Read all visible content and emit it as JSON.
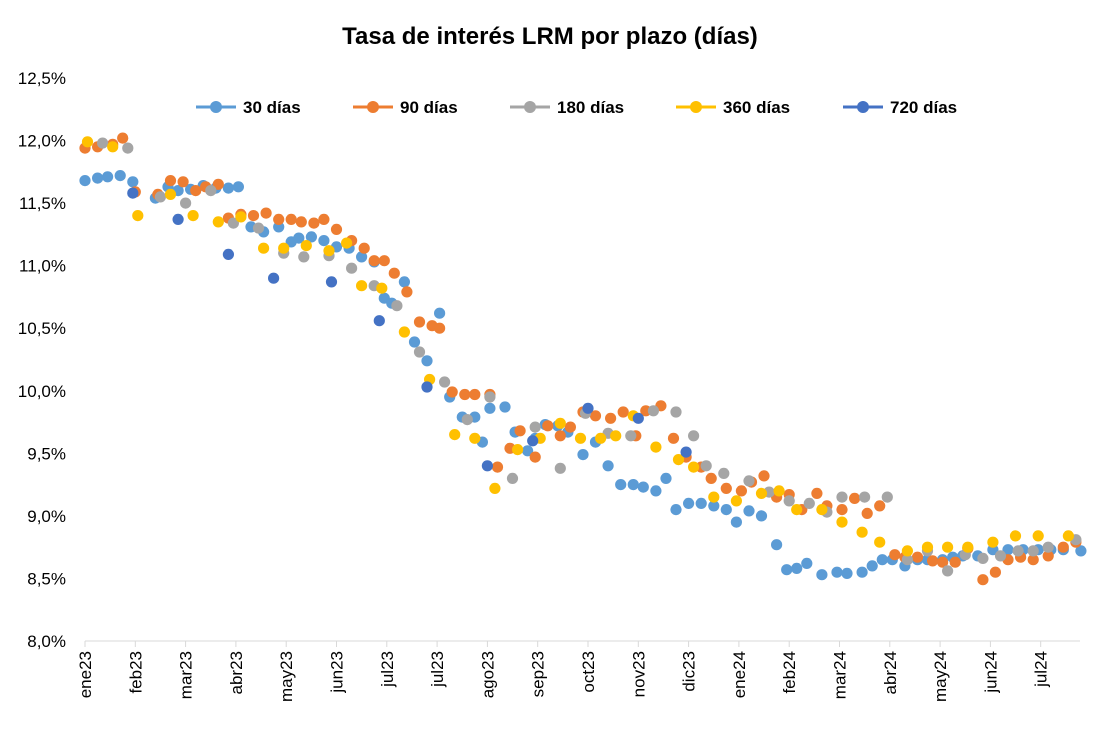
{
  "chart_data": {
    "type": "scatter",
    "title": "Tasa de interés LRM por plazo (días)",
    "xlabel": "",
    "ylabel": "",
    "ylim": [
      8.0,
      12.5
    ],
    "y_ticks": [
      "8,0%",
      "8,5%",
      "9,0%",
      "9,5%",
      "10,0%",
      "10,5%",
      "11,0%",
      "11,5%",
      "12,0%",
      "12,5%"
    ],
    "x_categories": [
      "ene23",
      "feb23",
      "mar23",
      "abr23",
      "may23",
      "jun23",
      "jul23",
      "jul23",
      "ago23",
      "sep23",
      "oct23",
      "nov23",
      "dic23",
      "ene24",
      "feb24",
      "mar24",
      "abr24",
      "may24",
      "jun24",
      "jul24"
    ],
    "xlim": [
      0,
      19.8
    ],
    "grid": false,
    "legend_position": "top",
    "series": [
      {
        "name": "30 días",
        "color": "#5B9BD5",
        "x": [
          0,
          0.25,
          0.45,
          0.7,
          0.95,
          1.4,
          1.65,
          1.85,
          2.1,
          2.35,
          2.6,
          2.85,
          3.05,
          3.3,
          3.55,
          3.85,
          4.1,
          4.25,
          4.5,
          4.75,
          5.0,
          5.25,
          5.5,
          5.75,
          5.95,
          6.1,
          6.35,
          6.55,
          6.8,
          7.05,
          7.25,
          7.5,
          7.75,
          7.9,
          8.05,
          8.35,
          8.55,
          8.8,
          8.95,
          9.15,
          9.4,
          9.6,
          9.9,
          10.15,
          10.4,
          10.65,
          10.9,
          11.1,
          11.35,
          11.55,
          11.75,
          12.0,
          12.25,
          12.5,
          12.75,
          12.95,
          13.2,
          13.45,
          13.75,
          13.95,
          14.15,
          14.35,
          14.65,
          14.95,
          15.15,
          15.45,
          15.65,
          15.85,
          16.05,
          16.3,
          16.55,
          16.75,
          17.05,
          17.25,
          17.45,
          17.75,
          18.05,
          18.35,
          18.65,
          18.95,
          19.2,
          19.45,
          19.8
        ],
        "y": [
          11.68,
          11.7,
          11.71,
          11.72,
          11.67,
          11.54,
          11.63,
          11.6,
          11.61,
          11.64,
          11.62,
          11.62,
          11.63,
          11.31,
          11.27,
          11.31,
          11.19,
          11.22,
          11.23,
          11.2,
          11.15,
          11.14,
          11.07,
          11.03,
          10.74,
          10.7,
          10.87,
          10.39,
          10.24,
          10.62,
          9.95,
          9.79,
          9.79,
          9.59,
          9.86,
          9.87,
          9.67,
          9.52,
          9.62,
          9.73,
          9.72,
          9.67,
          9.49,
          9.59,
          9.4,
          9.25,
          9.25,
          9.23,
          9.2,
          9.3,
          9.05,
          9.1,
          9.1,
          9.08,
          9.05,
          8.95,
          9.04,
          9.0,
          8.77,
          8.57,
          8.58,
          8.62,
          8.53,
          8.55,
          8.54,
          8.55,
          8.6,
          8.65,
          8.65,
          8.6,
          8.65,
          8.65,
          8.65,
          8.67,
          8.68,
          8.68,
          8.73,
          8.73,
          8.73,
          8.73,
          8.73,
          8.73,
          8.72
        ]
      },
      {
        "name": "90 días",
        "color": "#ED7D31",
        "x": [
          0,
          0.25,
          0.55,
          0.75,
          1.0,
          1.45,
          1.7,
          1.95,
          2.2,
          2.4,
          2.65,
          2.85,
          3.1,
          3.35,
          3.6,
          3.85,
          4.1,
          4.3,
          4.55,
          4.75,
          5.0,
          5.3,
          5.55,
          5.75,
          5.95,
          6.15,
          6.4,
          6.65,
          6.9,
          7.05,
          7.3,
          7.55,
          7.75,
          8.05,
          8.2,
          8.45,
          8.65,
          8.95,
          9.2,
          9.45,
          9.65,
          9.9,
          10.15,
          10.45,
          10.7,
          10.95,
          11.15,
          11.45,
          11.7,
          11.95,
          12.25,
          12.45,
          12.75,
          13.05,
          13.25,
          13.5,
          13.75,
          14.0,
          14.25,
          14.55,
          14.75,
          15.05,
          15.3,
          15.55,
          15.8,
          16.1,
          16.3,
          16.55,
          16.85,
          17.05,
          17.3,
          17.55,
          17.85,
          18.1,
          18.35,
          18.6,
          18.85,
          19.15,
          19.45,
          19.7
        ],
        "y": [
          11.94,
          11.95,
          11.97,
          12.02,
          11.59,
          11.57,
          11.68,
          11.67,
          11.6,
          11.63,
          11.65,
          11.38,
          11.41,
          11.4,
          11.42,
          11.37,
          11.37,
          11.35,
          11.34,
          11.37,
          11.29,
          11.2,
          11.14,
          11.04,
          11.04,
          10.94,
          10.79,
          10.55,
          10.52,
          10.5,
          9.99,
          9.97,
          9.97,
          9.97,
          9.39,
          9.54,
          9.68,
          9.47,
          9.72,
          9.64,
          9.71,
          9.83,
          9.8,
          9.78,
          9.83,
          9.64,
          9.84,
          9.88,
          9.62,
          9.47,
          9.39,
          9.3,
          9.22,
          9.2,
          9.27,
          9.32,
          9.15,
          9.17,
          9.05,
          9.18,
          9.08,
          9.05,
          9.14,
          9.02,
          9.08,
          8.69,
          8.67,
          8.67,
          8.64,
          8.63,
          8.63,
          8.74,
          8.49,
          8.55,
          8.65,
          8.67,
          8.65,
          8.68,
          8.75,
          8.79
        ]
      },
      {
        "name": "180 días",
        "color": "#A5A5A5",
        "x": [
          0.35,
          0.85,
          1.5,
          2.0,
          2.5,
          2.95,
          3.45,
          3.95,
          4.35,
          4.85,
          5.3,
          5.75,
          6.2,
          6.65,
          7.15,
          7.6,
          8.05,
          8.5,
          8.95,
          9.45,
          9.95,
          10.4,
          10.85,
          11.3,
          11.75,
          12.1,
          12.35,
          12.7,
          13.2,
          13.6,
          14.0,
          14.4,
          14.75,
          15.05,
          15.5,
          15.95,
          16.35,
          16.75,
          17.15,
          17.5,
          17.85,
          18.2,
          18.55,
          18.85,
          19.15,
          19.7
        ],
        "y": [
          11.98,
          11.94,
          11.55,
          11.5,
          11.6,
          11.34,
          11.3,
          11.1,
          11.07,
          11.08,
          10.98,
          10.84,
          10.68,
          10.31,
          10.07,
          9.77,
          9.95,
          9.3,
          9.71,
          9.38,
          9.82,
          9.66,
          9.64,
          9.84,
          9.83,
          9.64,
          9.4,
          9.34,
          9.28,
          9.19,
          9.12,
          9.1,
          9.03,
          9.15,
          9.15,
          9.15,
          8.65,
          8.72,
          8.56,
          8.69,
          8.66,
          8.68,
          8.72,
          8.72,
          8.75,
          8.81
        ]
      },
      {
        "name": "360 días",
        "color": "#FFC000",
        "x": [
          0.05,
          0.55,
          1.05,
          1.7,
          2.15,
          2.65,
          3.1,
          3.55,
          3.95,
          4.4,
          4.85,
          5.2,
          5.5,
          5.9,
          6.35,
          6.85,
          7.35,
          7.75,
          8.15,
          8.6,
          9.05,
          9.45,
          9.85,
          10.25,
          10.55,
          10.9,
          11.35,
          11.8,
          12.1,
          12.5,
          12.95,
          13.45,
          13.8,
          14.15,
          14.65,
          15.05,
          15.45,
          15.8,
          16.35,
          16.75,
          17.15,
          17.55,
          18.05,
          18.5,
          18.95,
          19.55
        ],
        "y": [
          11.99,
          11.95,
          11.4,
          11.57,
          11.4,
          11.35,
          11.39,
          11.14,
          11.14,
          11.16,
          11.12,
          11.18,
          10.84,
          10.82,
          10.47,
          10.09,
          9.65,
          9.62,
          9.22,
          9.53,
          9.62,
          9.74,
          9.62,
          9.62,
          9.64,
          9.8,
          9.55,
          9.45,
          9.39,
          9.15,
          9.12,
          9.18,
          9.2,
          9.05,
          9.05,
          8.95,
          8.87,
          8.79,
          8.72,
          8.75,
          8.75,
          8.75,
          8.79,
          8.84,
          8.84,
          8.84
        ]
      },
      {
        "name": "720 días",
        "color": "#4472C4",
        "x": [
          0.95,
          1.85,
          2.85,
          3.75,
          4.9,
          5.85,
          6.8,
          8.0,
          8.9,
          10.0,
          11.0,
          11.95
        ],
        "y": [
          11.58,
          11.37,
          11.09,
          10.9,
          10.87,
          10.56,
          10.03,
          9.4,
          9.6,
          9.86,
          9.78,
          9.51
        ]
      }
    ]
  }
}
